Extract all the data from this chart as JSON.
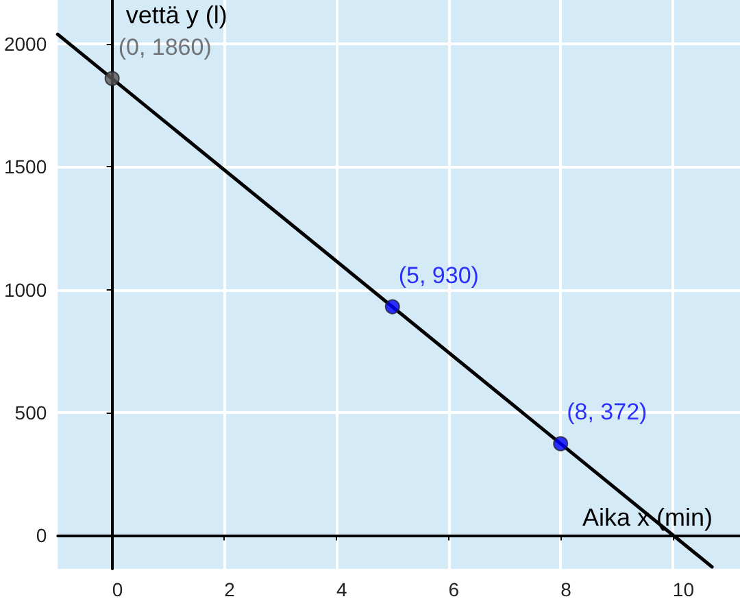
{
  "chart_data": {
    "type": "line",
    "xlabel": "Aika x (min)",
    "ylabel": "vettä y (l)",
    "series": [
      {
        "color": "#000000",
        "x": [
          -0.97,
          10.7
        ],
        "values": [
          2040,
          -130
        ],
        "marker": "none"
      },
      {
        "type": "scatter",
        "colors": [
          "#555555",
          "#0000ff",
          "#0000ff"
        ],
        "x": [
          0,
          5,
          8
        ],
        "values": [
          1860,
          930,
          372
        ],
        "marker": "circle"
      }
    ],
    "annotations": [
      {
        "text": "(0, 1860)",
        "x": 0,
        "y": 1860
      },
      {
        "text": "(5, 930)",
        "x": 5,
        "y": 930
      },
      {
        "text": "(8, 372)",
        "x": 8,
        "y": 372
      }
    ],
    "xlim": [
      -0.97,
      11.2
    ],
    "ylim": [
      -138,
      2180
    ],
    "xticks": [
      0,
      2,
      4,
      6,
      8,
      10
    ],
    "yticks": [
      0,
      500,
      1000,
      1500,
      2000
    ],
    "grid": true
  }
}
